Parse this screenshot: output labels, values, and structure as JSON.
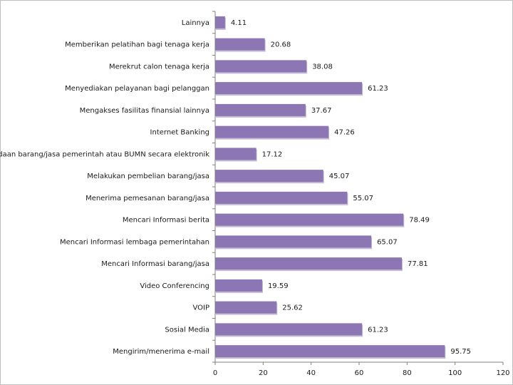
{
  "chart_data": {
    "type": "bar",
    "orientation": "horizontal",
    "categories": [
      "Lainnya",
      "Memberikan pelatihan bagi tenaga kerja",
      "Merekrut calon tenaga kerja",
      "Menyediakan pelayanan bagi pelanggan",
      "Mengakses fasilitas finansial lainnya",
      "Internet Banking",
      "Pengadaan barang/jasa pemerintah atau BUMN secara elektronik",
      "Melakukan pembelian barang/jasa",
      "Menerima pemesanan barang/jasa",
      "Mencari Informasi berita",
      "Mencari Informasi lembaga pemerintahan",
      "Mencari Informasi barang/jasa",
      "Video Conferencing",
      "VOIP",
      "Sosial Media",
      "Mengirim/menerima e-mail"
    ],
    "values": [
      4.11,
      20.68,
      38.08,
      61.23,
      37.67,
      47.26,
      17.12,
      45.07,
      55.07,
      78.49,
      65.07,
      77.81,
      19.59,
      25.62,
      61.23,
      95.75
    ],
    "value_labels": [
      "4.11",
      "20.68",
      "38.08",
      "61.23",
      "37.67",
      "47.26",
      "17.12",
      "45.07",
      "55.07",
      "78.49",
      "65.07",
      "77.81",
      "19.59",
      "25.62",
      "61.23",
      "95.75"
    ],
    "xlim": [
      0,
      120
    ],
    "x_ticks": [
      "0",
      "20",
      "40",
      "60",
      "80",
      "100",
      "120"
    ],
    "title": "",
    "xlabel": "",
    "ylabel": "",
    "grid": false,
    "legend": "none",
    "bar_color": "#8c76b4",
    "bar_shadow_color": "#c4bdd3"
  }
}
